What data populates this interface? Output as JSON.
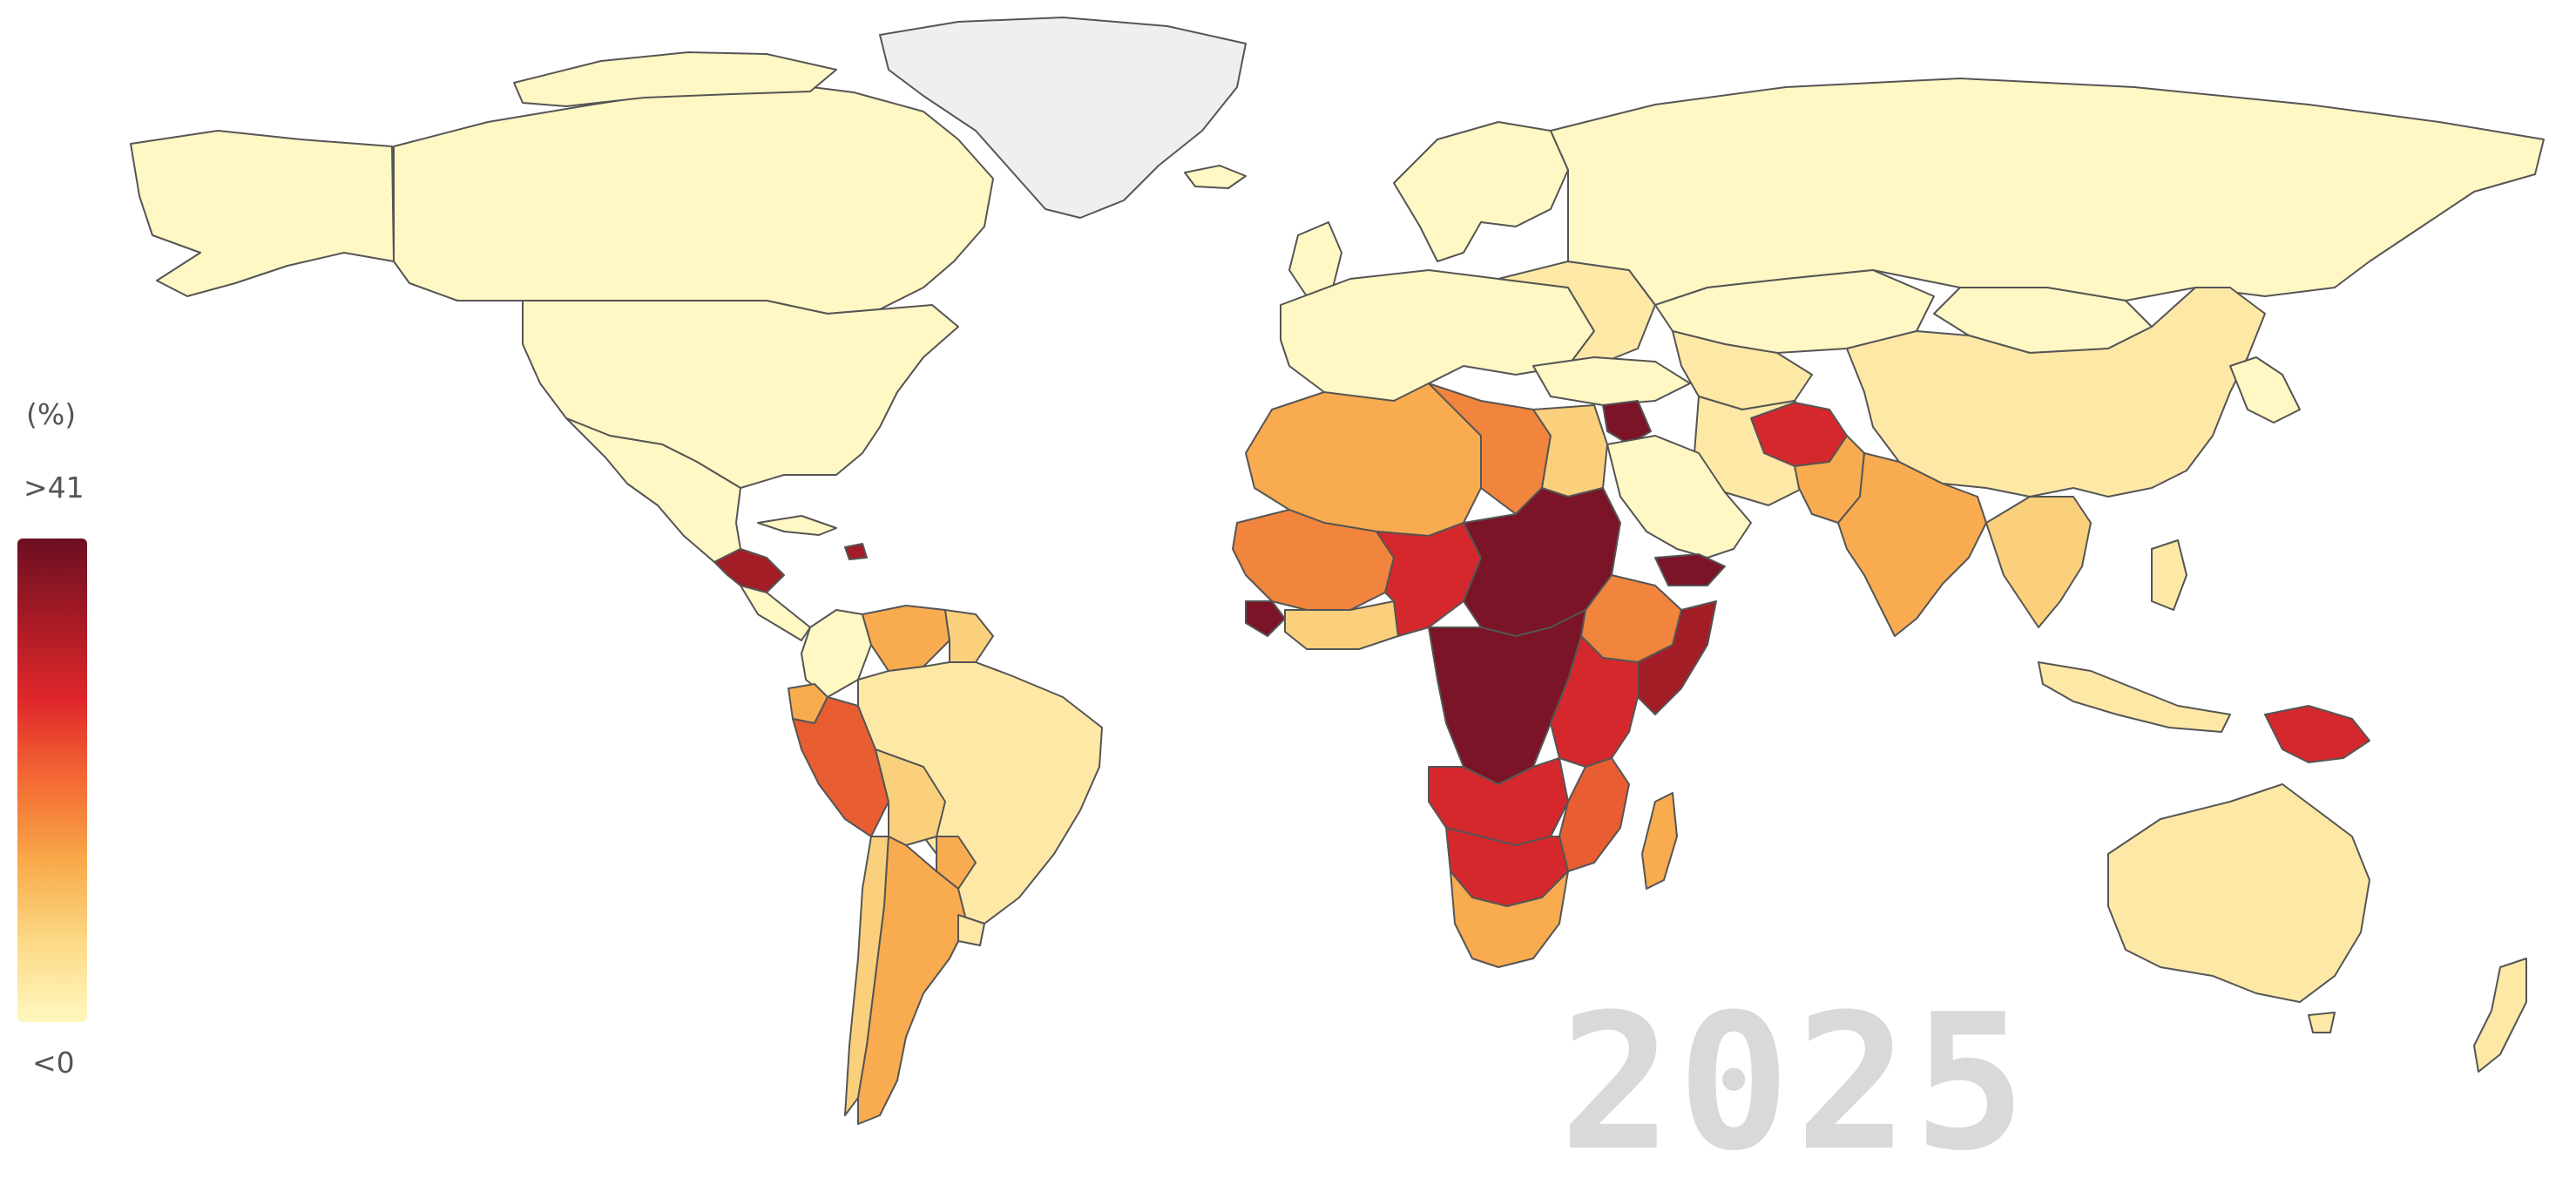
{
  "legend": {
    "unit": "(%)",
    "max_label": ">41",
    "min_label": "<0",
    "scale_colors": [
      "#fff7c0",
      "#fcd985",
      "#f9a94a",
      "#f36a33",
      "#e0272b",
      "#a71a25",
      "#6b0f22"
    ]
  },
  "year": "2025",
  "colors": {
    "no_data": "#efefef",
    "level_0": "#fff7c4",
    "level_1": "#fde8a6",
    "level_2": "#fbd07c",
    "level_3": "#f8ab4f",
    "level_4": "#f1853d",
    "level_5": "#e85d32",
    "level_6": "#d5282c",
    "level_7": "#a31d26",
    "level_8": "#7a1426",
    "border": "#555555"
  }
}
